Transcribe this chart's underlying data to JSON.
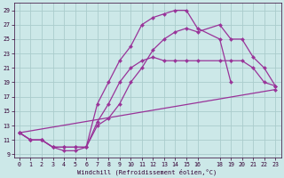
{
  "xlabel": "Windchill (Refroidissement éolien,°C)",
  "bg_color": "#cce8e8",
  "grid_color": "#aacccc",
  "line_color": "#993399",
  "xlim": [
    -0.5,
    23.5
  ],
  "ylim": [
    8.5,
    30
  ],
  "xticks": [
    0,
    1,
    2,
    3,
    4,
    5,
    6,
    7,
    8,
    9,
    10,
    11,
    12,
    13,
    14,
    15,
    16,
    18,
    19,
    20,
    21,
    22,
    23
  ],
  "yticks": [
    9,
    11,
    13,
    15,
    17,
    19,
    21,
    23,
    25,
    27,
    29
  ],
  "line1_x": [
    0,
    1,
    2,
    3,
    4,
    5,
    6,
    7,
    8,
    9,
    10,
    11,
    12,
    13,
    14,
    15,
    16,
    18,
    19
  ],
  "line1_y": [
    12,
    11,
    11,
    10,
    10,
    10,
    10,
    16,
    19,
    22,
    24,
    27,
    28,
    28.5,
    29,
    29,
    26.5,
    25,
    19
  ],
  "line2_x": [
    0,
    1,
    2,
    3,
    4,
    5,
    6,
    7,
    8,
    9,
    10,
    11,
    12,
    13,
    14,
    15,
    16,
    18,
    19,
    20,
    21,
    22,
    23
  ],
  "line2_y": [
    12,
    11,
    11,
    10,
    10,
    10,
    10,
    13.5,
    16,
    19,
    21,
    22,
    22.5,
    22,
    22,
    22,
    22,
    22,
    22,
    22,
    21,
    19,
    18.5
  ],
  "line3_x": [
    0,
    23
  ],
  "line3_y": [
    12,
    18
  ],
  "line4_x": [
    0,
    1,
    2,
    3,
    4,
    5,
    6,
    7,
    8,
    9,
    10,
    11,
    12,
    13,
    14,
    15,
    16,
    18,
    19,
    20,
    21,
    22,
    23
  ],
  "line4_y": [
    12,
    11,
    11,
    10,
    9.5,
    9.5,
    10,
    13,
    14,
    16,
    19,
    21,
    23.5,
    25,
    26,
    26.5,
    26,
    27,
    25,
    25,
    22.5,
    21,
    18.5
  ]
}
